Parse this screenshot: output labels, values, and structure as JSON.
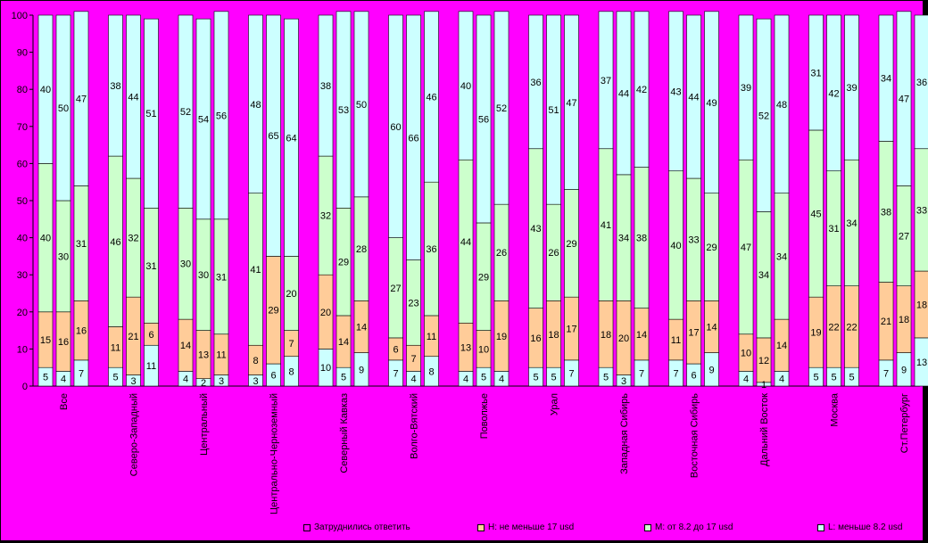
{
  "chart_data": {
    "type": "bar",
    "stacked": true,
    "ylim": [
      0,
      100
    ],
    "yticks": [
      0,
      10,
      20,
      30,
      40,
      50,
      60,
      70,
      80,
      90,
      100
    ],
    "grid": false,
    "legend_position": "bottom",
    "categories": [
      "Все",
      "Северо-Западный",
      "Центральный",
      "Центрально-Черноземный",
      "Северный Кавказ",
      "Волго-Вятский",
      "Поволжье",
      "Урал",
      "Западная Сибирь",
      "Восточная Сибирь",
      "Дальний Восток",
      "Москва",
      "Ст.Петербург"
    ],
    "series": [
      {
        "name": "Затруднились ответить",
        "color": "#CCFFFF",
        "values": [
          [
            5,
            4,
            7
          ],
          [
            5,
            3,
            11
          ],
          [
            4,
            2,
            3
          ],
          [
            3,
            6,
            8
          ],
          [
            10,
            5,
            9
          ],
          [
            7,
            4,
            8
          ],
          [
            4,
            5,
            4
          ],
          [
            5,
            5,
            7
          ],
          [
            5,
            3,
            7
          ],
          [
            7,
            6,
            9
          ],
          [
            4,
            1,
            4
          ],
          [
            5,
            5,
            5
          ],
          [
            7,
            9,
            13
          ]
        ]
      },
      {
        "name": "Н: не меньше 17 usd",
        "color": "#FFCC99",
        "values": [
          [
            15,
            16,
            16
          ],
          [
            11,
            21,
            6
          ],
          [
            14,
            13,
            11
          ],
          [
            8,
            29,
            7
          ],
          [
            20,
            14,
            14
          ],
          [
            6,
            7,
            11
          ],
          [
            13,
            10,
            19
          ],
          [
            16,
            18,
            17
          ],
          [
            18,
            20,
            14
          ],
          [
            11,
            17,
            14
          ],
          [
            10,
            12,
            14
          ],
          [
            19,
            22,
            22
          ],
          [
            21,
            18,
            18
          ]
        ]
      },
      {
        "name": "М: от 8.2 до 17 usd",
        "color": "#CCFFCC",
        "values": [
          [
            40,
            30,
            31
          ],
          [
            46,
            32,
            31
          ],
          [
            30,
            30,
            31
          ],
          [
            41,
            0,
            20
          ],
          [
            32,
            29,
            28
          ],
          [
            27,
            23,
            36
          ],
          [
            44,
            29,
            26
          ],
          [
            43,
            26,
            29
          ],
          [
            41,
            34,
            38
          ],
          [
            40,
            33,
            29
          ],
          [
            47,
            34,
            34
          ],
          [
            45,
            31,
            34
          ],
          [
            38,
            27,
            33
          ]
        ]
      },
      {
        "name": "L: меньше 8.2 usd",
        "color": "#CCFFFF",
        "values": [
          [
            40,
            50,
            47
          ],
          [
            38,
            44,
            51
          ],
          [
            52,
            54,
            56
          ],
          [
            48,
            65,
            64
          ],
          [
            38,
            53,
            50
          ],
          [
            60,
            66,
            46
          ],
          [
            40,
            56,
            52
          ],
          [
            36,
            51,
            47
          ],
          [
            37,
            44,
            42
          ],
          [
            43,
            44,
            49
          ],
          [
            39,
            52,
            48
          ],
          [
            31,
            42,
            39
          ],
          [
            34,
            47,
            36
          ]
        ]
      }
    ]
  }
}
